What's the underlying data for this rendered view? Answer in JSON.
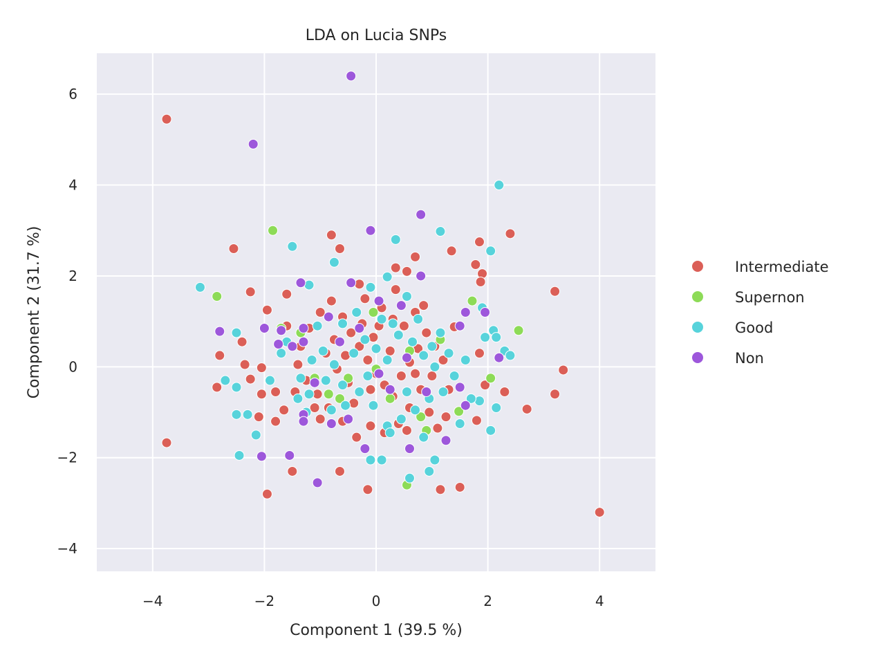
{
  "chart_data": {
    "type": "scatter",
    "title": "LDA on Lucia SNPs",
    "xlabel": "Component 1 (39.5 %)",
    "ylabel": "Component 2 (31.7 %)",
    "xlim": [
      -5,
      5
    ],
    "ylim": [
      -4.5,
      6.9
    ],
    "xticks": [
      -4,
      -2,
      0,
      2,
      4
    ],
    "yticks": [
      -4,
      -2,
      0,
      2,
      4,
      6
    ],
    "xtick_labels": [
      "−4",
      "−2",
      "0",
      "2",
      "4"
    ],
    "ytick_labels": [
      "−4",
      "−2",
      "0",
      "2",
      "4",
      "6"
    ],
    "grid": true,
    "background": "#eaeaf2",
    "grid_color": "#ffffff",
    "legend_position": "right",
    "series": [
      {
        "name": "Intermediate",
        "color": "#db5f57",
        "points": [
          [
            -3.75,
            5.45
          ],
          [
            -3.75,
            -1.67
          ],
          [
            4.0,
            -3.2
          ],
          [
            3.35,
            -0.07
          ],
          [
            3.2,
            1.66
          ],
          [
            3.2,
            -0.6
          ],
          [
            2.7,
            -0.93
          ],
          [
            2.4,
            2.93
          ],
          [
            2.3,
            -0.55
          ],
          [
            1.85,
            2.75
          ],
          [
            1.9,
            2.05
          ],
          [
            1.78,
            2.25
          ],
          [
            1.87,
            1.87
          ],
          [
            1.35,
            2.55
          ],
          [
            0.7,
            2.42
          ],
          [
            0.35,
            2.18
          ],
          [
            0.55,
            2.1
          ],
          [
            -0.65,
            2.6
          ],
          [
            -0.8,
            2.9
          ],
          [
            -2.55,
            2.6
          ],
          [
            -2.25,
            1.65
          ],
          [
            -1.95,
            1.25
          ],
          [
            -1.6,
            1.6
          ],
          [
            -2.4,
            0.55
          ],
          [
            -2.8,
            0.25
          ],
          [
            -2.85,
            -0.45
          ],
          [
            -2.35,
            0.05
          ],
          [
            -2.25,
            -0.27
          ],
          [
            -2.05,
            -0.02
          ],
          [
            -2.05,
            -0.6
          ],
          [
            -2.1,
            -1.1
          ],
          [
            -1.8,
            -1.2
          ],
          [
            -1.95,
            -2.8
          ],
          [
            -1.8,
            -0.55
          ],
          [
            -1.65,
            -0.95
          ],
          [
            -1.5,
            -2.3
          ],
          [
            -1.0,
            -1.15
          ],
          [
            -0.65,
            -2.3
          ],
          [
            -0.15,
            -2.7
          ],
          [
            1.15,
            -2.7
          ],
          [
            1.5,
            -2.65
          ],
          [
            1.95,
            -0.4
          ],
          [
            1.8,
            -1.18
          ],
          [
            1.85,
            0.3
          ],
          [
            1.4,
            0.88
          ],
          [
            1.1,
            -1.35
          ],
          [
            1.25,
            -1.1
          ],
          [
            -0.3,
            1.82
          ],
          [
            -0.2,
            1.5
          ],
          [
            0.1,
            1.3
          ],
          [
            0.3,
            1.05
          ],
          [
            0.5,
            0.9
          ],
          [
            0.7,
            1.2
          ],
          [
            0.9,
            0.75
          ],
          [
            1.05,
            0.45
          ],
          [
            1.2,
            0.15
          ],
          [
            1.0,
            -0.2
          ],
          [
            0.8,
            -0.5
          ],
          [
            0.6,
            -0.9
          ],
          [
            0.4,
            -1.25
          ],
          [
            0.15,
            -1.45
          ],
          [
            -0.1,
            -1.3
          ],
          [
            -0.35,
            -1.55
          ],
          [
            -0.6,
            -1.2
          ],
          [
            -0.85,
            -0.9
          ],
          [
            -1.05,
            -0.6
          ],
          [
            -1.25,
            -0.3
          ],
          [
            -1.4,
            0.05
          ],
          [
            -1.35,
            0.45
          ],
          [
            -1.2,
            0.85
          ],
          [
            -1.0,
            1.2
          ],
          [
            -0.8,
            1.45
          ],
          [
            -0.6,
            1.1
          ],
          [
            -0.45,
            0.75
          ],
          [
            -0.3,
            0.45
          ],
          [
            -0.15,
            0.15
          ],
          [
            0.0,
            -0.15
          ],
          [
            0.15,
            -0.4
          ],
          [
            0.3,
            -0.65
          ],
          [
            0.45,
            -0.2
          ],
          [
            0.6,
            0.1
          ],
          [
            0.75,
            0.4
          ],
          [
            -0.05,
            0.65
          ],
          [
            -0.25,
            0.95
          ],
          [
            -0.5,
            -0.35
          ],
          [
            -0.7,
            -0.05
          ],
          [
            -0.9,
            0.3
          ],
          [
            -1.1,
            -0.9
          ],
          [
            0.25,
            0.35
          ],
          [
            0.55,
            -1.4
          ],
          [
            0.95,
            -1.0
          ],
          [
            -1.6,
            0.9
          ],
          [
            -0.4,
            -0.8
          ],
          [
            0.05,
            0.9
          ],
          [
            0.85,
            1.35
          ],
          [
            -0.75,
            0.6
          ],
          [
            1.3,
            -0.5
          ],
          [
            -1.45,
            -0.55
          ],
          [
            0.35,
            1.7
          ],
          [
            -0.1,
            -0.5
          ],
          [
            0.7,
            -0.15
          ],
          [
            -0.55,
            0.25
          ]
        ]
      },
      {
        "name": "Supernon",
        "color": "#8ddb57",
        "points": [
          [
            -1.85,
            3.0
          ],
          [
            -2.85,
            1.55
          ],
          [
            1.72,
            1.45
          ],
          [
            2.55,
            0.8
          ],
          [
            2.05,
            -0.25
          ],
          [
            1.48,
            -0.98
          ],
          [
            0.55,
            -2.6
          ],
          [
            0.8,
            -1.1
          ],
          [
            -0.05,
            1.2
          ],
          [
            -1.7,
            0.85
          ],
          [
            -0.85,
            -0.6
          ],
          [
            -0.5,
            -0.25
          ],
          [
            0.25,
            -0.7
          ],
          [
            1.15,
            0.6
          ],
          [
            -1.1,
            -0.25
          ],
          [
            0.0,
            -0.05
          ],
          [
            -1.35,
            0.75
          ],
          [
            -0.65,
            -0.7
          ],
          [
            0.6,
            0.35
          ],
          [
            0.9,
            -1.4
          ]
        ]
      },
      {
        "name": "Good",
        "color": "#57d3db",
        "points": [
          [
            2.2,
            4.0
          ],
          [
            2.05,
            2.55
          ],
          [
            1.15,
            2.98
          ],
          [
            0.35,
            2.8
          ],
          [
            -0.75,
            2.3
          ],
          [
            -1.5,
            2.65
          ],
          [
            -3.15,
            1.75
          ],
          [
            -2.5,
            0.75
          ],
          [
            -2.5,
            -0.45
          ],
          [
            -2.5,
            -1.05
          ],
          [
            -2.45,
            -1.95
          ],
          [
            -2.15,
            -1.5
          ],
          [
            -2.3,
            -1.05
          ],
          [
            -1.9,
            -0.3
          ],
          [
            -2.7,
            -0.3
          ],
          [
            1.9,
            1.3
          ],
          [
            1.95,
            0.65
          ],
          [
            2.1,
            0.8
          ],
          [
            2.15,
            0.65
          ],
          [
            2.3,
            0.35
          ],
          [
            2.4,
            0.25
          ],
          [
            2.15,
            -0.9
          ],
          [
            1.85,
            -0.75
          ],
          [
            2.05,
            -1.4
          ],
          [
            1.5,
            -1.25
          ],
          [
            1.05,
            -2.05
          ],
          [
            0.95,
            -2.3
          ],
          [
            0.6,
            -2.45
          ],
          [
            0.1,
            -2.05
          ],
          [
            -0.1,
            -2.05
          ],
          [
            0.2,
            1.98
          ],
          [
            0.55,
            1.55
          ],
          [
            -0.1,
            1.75
          ],
          [
            -1.2,
            1.8
          ],
          [
            -1.6,
            0.55
          ],
          [
            -1.7,
            0.3
          ],
          [
            -1.4,
            -0.7
          ],
          [
            -1.2,
            -0.6
          ],
          [
            -0.8,
            -0.95
          ],
          [
            -0.6,
            -0.4
          ],
          [
            -0.4,
            0.3
          ],
          [
            -0.2,
            0.6
          ],
          [
            0.0,
            0.4
          ],
          [
            0.2,
            0.15
          ],
          [
            0.4,
            0.7
          ],
          [
            0.65,
            0.55
          ],
          [
            0.85,
            0.25
          ],
          [
            1.0,
            0.45
          ],
          [
            1.15,
            0.75
          ],
          [
            1.3,
            0.3
          ],
          [
            1.4,
            -0.2
          ],
          [
            1.2,
            -0.55
          ],
          [
            0.95,
            -0.7
          ],
          [
            0.7,
            -0.95
          ],
          [
            0.45,
            -1.15
          ],
          [
            0.2,
            -1.3
          ],
          [
            -0.05,
            -0.85
          ],
          [
            -0.3,
            -0.55
          ],
          [
            -0.55,
            -0.85
          ],
          [
            -0.75,
            0.05
          ],
          [
            -0.95,
            0.35
          ],
          [
            -1.15,
            0.15
          ],
          [
            -1.35,
            -0.25
          ],
          [
            -0.6,
            0.95
          ],
          [
            -0.35,
            1.2
          ],
          [
            0.1,
            1.05
          ],
          [
            0.75,
            1.05
          ],
          [
            1.05,
            0.0
          ],
          [
            0.55,
            -0.55
          ],
          [
            -0.15,
            -0.2
          ],
          [
            0.3,
            0.95
          ],
          [
            -0.9,
            -0.3
          ],
          [
            1.6,
            0.15
          ],
          [
            -1.05,
            0.9
          ],
          [
            0.85,
            -1.55
          ],
          [
            0.25,
            -1.45
          ],
          [
            1.7,
            -0.7
          ],
          [
            -1.25,
            -1.0
          ]
        ]
      },
      {
        "name": "Non",
        "color": "#9d57db",
        "points": [
          [
            -0.45,
            6.4
          ],
          [
            -2.2,
            4.9
          ],
          [
            0.8,
            3.35
          ],
          [
            -0.1,
            3.0
          ],
          [
            0.8,
            2.0
          ],
          [
            -1.35,
            1.85
          ],
          [
            -0.45,
            1.85
          ],
          [
            -2.0,
            0.85
          ],
          [
            -2.8,
            0.78
          ],
          [
            1.95,
            1.2
          ],
          [
            1.6,
            1.2
          ],
          [
            1.5,
            0.9
          ],
          [
            2.2,
            0.2
          ],
          [
            1.5,
            -0.45
          ],
          [
            1.6,
            -0.85
          ],
          [
            1.25,
            -1.62
          ],
          [
            0.6,
            -1.8
          ],
          [
            -0.2,
            -1.8
          ],
          [
            -1.05,
            -2.55
          ],
          [
            -1.55,
            -1.95
          ],
          [
            -2.05,
            -1.97
          ],
          [
            -1.3,
            -1.05
          ],
          [
            -1.3,
            -1.2
          ],
          [
            -1.1,
            -0.35
          ],
          [
            -0.8,
            -1.25
          ],
          [
            -0.5,
            -1.15
          ],
          [
            -1.3,
            0.55
          ],
          [
            -1.3,
            0.85
          ],
          [
            -1.5,
            0.45
          ],
          [
            -1.75,
            0.5
          ],
          [
            -0.65,
            0.55
          ],
          [
            -0.3,
            0.85
          ],
          [
            0.05,
            1.45
          ],
          [
            0.45,
            1.35
          ],
          [
            0.25,
            -0.5
          ],
          [
            0.05,
            -0.15
          ],
          [
            0.55,
            0.2
          ],
          [
            0.9,
            -0.55
          ],
          [
            -1.7,
            0.8
          ],
          [
            -0.85,
            1.1
          ]
        ]
      }
    ]
  }
}
